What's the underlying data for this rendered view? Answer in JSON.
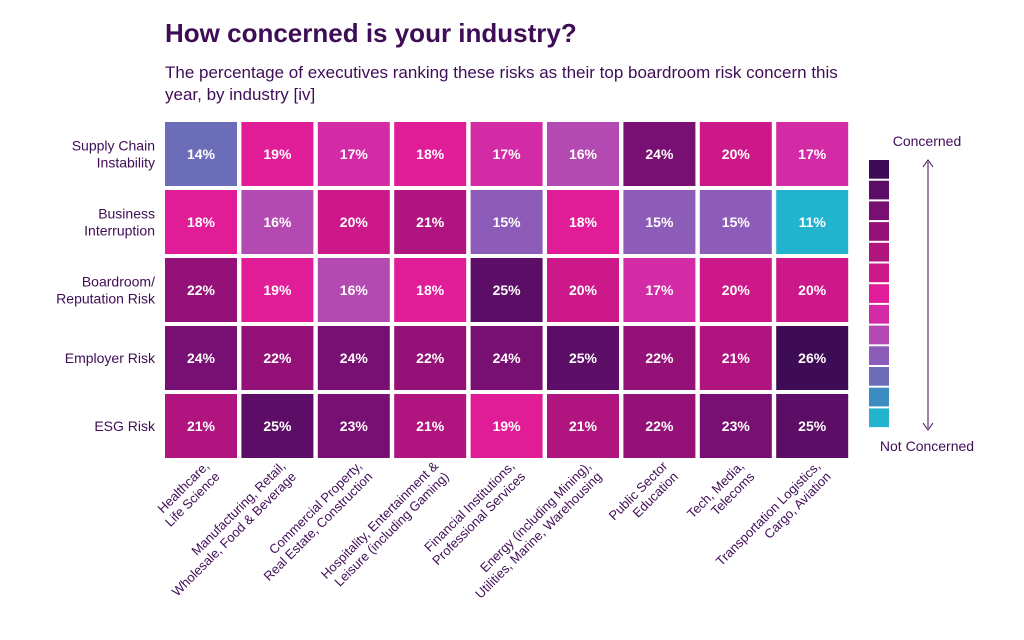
{
  "title": "How concerned is your industry?",
  "subtitle": "The percentage of executives ranking these risks as their top boardroom risk concern this year, by industry [iv]",
  "colors": {
    "text": "#3f0d56",
    "cell_text": "#ffffff",
    "scale": [
      "#3e0c54",
      "#5c0d65",
      "#780f72",
      "#941277",
      "#b0157f",
      "#cc1888",
      "#e01d96",
      "#d32aa5",
      "#b34ab1",
      "#8c5cb8",
      "#6c6db9",
      "#3b8cc1",
      "#22b3cf"
    ]
  },
  "chart_data": {
    "type": "heatmap",
    "rows": [
      [
        "Supply Chain",
        "Instability"
      ],
      [
        "Business",
        "Interruption"
      ],
      [
        "Boardroom/",
        "Reputation Risk"
      ],
      [
        "Employer Risk"
      ],
      [
        "ESG Risk"
      ]
    ],
    "columns": [
      [
        "Healthcare,",
        "Life Science"
      ],
      [
        "Manufacturing, Retail,",
        "Wholesale, Food & Beverage"
      ],
      [
        "Commercial Property,",
        "Real Estate, Construction"
      ],
      [
        "Hospitality, Entertainment &",
        "Leisure (including Gaming)"
      ],
      [
        "Financial Institutions,",
        "Professional Services"
      ],
      [
        "Energy (including Mining),",
        "Utilities, Marine, Warehousing"
      ],
      [
        "Public Sector",
        "Education"
      ],
      [
        "Tech, Media,",
        "Telecoms"
      ],
      [
        "Transportation Logistics,",
        "Cargo, Aviation"
      ]
    ],
    "values": [
      [
        14,
        19,
        17,
        18,
        17,
        16,
        24,
        20,
        17
      ],
      [
        18,
        16,
        20,
        21,
        15,
        18,
        15,
        15,
        11
      ],
      [
        22,
        19,
        16,
        18,
        25,
        20,
        17,
        20,
        20
      ],
      [
        24,
        22,
        24,
        22,
        24,
        25,
        22,
        21,
        26
      ],
      [
        21,
        25,
        23,
        21,
        19,
        21,
        22,
        23,
        25
      ]
    ],
    "value_suffix": "%",
    "legend": {
      "top_label": "Concerned",
      "bottom_label": "Not Concerned",
      "steps": 13
    }
  }
}
